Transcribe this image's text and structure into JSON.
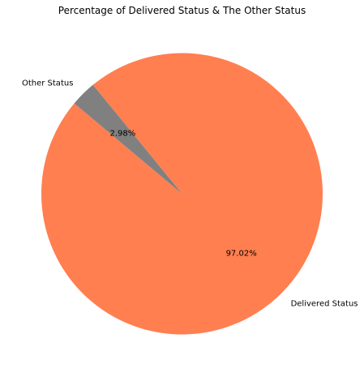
{
  "chart_data": {
    "type": "pie",
    "title": "Percentage of Delivered Status & The Other Status",
    "labels": [
      "Delivered Status",
      "Other Status"
    ],
    "values": [
      97.02,
      2.98
    ],
    "percent_labels": [
      "97.02%",
      "2.98%"
    ],
    "colors": [
      "#ff7f50",
      "#808080"
    ],
    "start_angle_deg": 140,
    "direction": "counterclockwise",
    "legend": "none"
  }
}
